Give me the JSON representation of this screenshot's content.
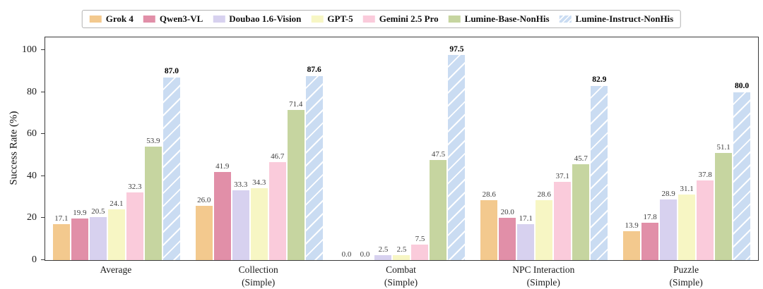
{
  "chart_data": {
    "type": "bar",
    "title": "",
    "ylabel": "Success Rate (%)",
    "ylim": [
      0,
      106
    ],
    "yticks": [
      0,
      20,
      40,
      60,
      80,
      100
    ],
    "grid": false,
    "legend_position": "top",
    "plot_background": "#ffffff",
    "axis_color": "#3a3a3a",
    "categories": [
      [
        "Average"
      ],
      [
        "Collection",
        "(Simple)"
      ],
      [
        "Combat",
        "(Simple)"
      ],
      [
        "NPC Interaction",
        "(Simple)"
      ],
      [
        "Puzzle",
        "(Simple)"
      ]
    ],
    "series": [
      {
        "name": "Grok 4",
        "color": "#f3c98e",
        "hatch": "none",
        "bold_labels": false,
        "values": [
          17.1,
          26.0,
          0.0,
          28.6,
          13.9
        ]
      },
      {
        "name": "Qwen3-VL",
        "color": "#e18fa8",
        "hatch": "none",
        "bold_labels": false,
        "values": [
          19.9,
          41.9,
          0.0,
          20.0,
          17.8
        ]
      },
      {
        "name": "Doubao 1.6-Vision",
        "color": "#d7d1ef",
        "hatch": "none",
        "bold_labels": false,
        "values": [
          20.5,
          33.3,
          2.5,
          17.1,
          28.9
        ]
      },
      {
        "name": "GPT-5",
        "color": "#f7f6c4",
        "hatch": "none",
        "bold_labels": false,
        "values": [
          24.1,
          34.3,
          2.5,
          28.6,
          31.1
        ]
      },
      {
        "name": "Gemini 2.5 Pro",
        "color": "#facbdb",
        "hatch": "none",
        "bold_labels": false,
        "values": [
          32.3,
          46.7,
          7.5,
          37.1,
          37.8
        ]
      },
      {
        "name": "Lumine-Base-NonHis",
        "color": "#c6d5a0",
        "hatch": "none",
        "bold_labels": false,
        "values": [
          53.9,
          71.4,
          47.5,
          45.7,
          51.1
        ]
      },
      {
        "name": "Lumine-Instruct-NonHis",
        "color": "#cadcf2",
        "hatch": "/",
        "hatch_color": "#ffffff",
        "bold_labels": true,
        "values": [
          87.0,
          87.6,
          97.5,
          82.9,
          80.0
        ]
      }
    ]
  }
}
